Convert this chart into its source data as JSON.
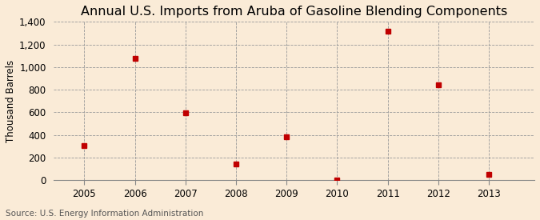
{
  "title": "Annual U.S. Imports from Aruba of Gasoline Blending Components",
  "ylabel": "Thousand Barrels",
  "source": "Source: U.S. Energy Information Administration",
  "years": [
    2005,
    2006,
    2007,
    2008,
    2009,
    2010,
    2011,
    2012,
    2013
  ],
  "values": [
    310,
    1080,
    595,
    145,
    385,
    0,
    1320,
    845,
    50
  ],
  "xlim": [
    2004.4,
    2013.9
  ],
  "ylim": [
    0,
    1400
  ],
  "yticks": [
    0,
    200,
    400,
    600,
    800,
    1000,
    1200,
    1400
  ],
  "ytick_labels": [
    "0",
    "200",
    "400",
    "600",
    "800",
    "1,000",
    "1,200",
    "1,400"
  ],
  "xticks": [
    2005,
    2006,
    2007,
    2008,
    2009,
    2010,
    2011,
    2012,
    2013
  ],
  "marker_color": "#c00000",
  "marker": "s",
  "marker_size": 5,
  "bg_color": "#faebd7",
  "grid_color": "#999999",
  "title_fontsize": 11.5,
  "label_fontsize": 8.5,
  "tick_fontsize": 8.5,
  "source_fontsize": 7.5
}
